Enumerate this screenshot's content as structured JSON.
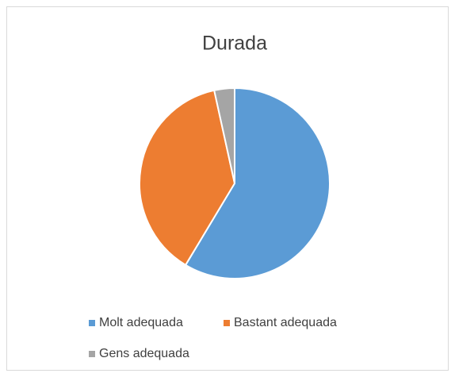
{
  "chart_data": {
    "type": "pie",
    "title": "Durada",
    "categories": [
      "Molt adequada",
      "Bastant adequada",
      "Gens adequada"
    ],
    "values": [
      17,
      11,
      1
    ],
    "colors": [
      "#5b9bd5",
      "#ed7d31",
      "#a5a5a5"
    ],
    "legend": "bottom"
  }
}
